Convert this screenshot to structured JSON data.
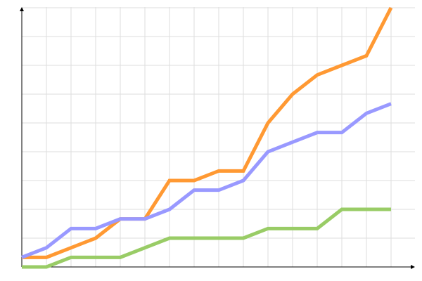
{
  "chart_data": {
    "type": "line",
    "title": "",
    "xlabel": "",
    "ylabel": "",
    "x": [
      0,
      1,
      2,
      3,
      4,
      5,
      6,
      7,
      8,
      9,
      10,
      11,
      12,
      13,
      14,
      15
    ],
    "xlim": [
      0,
      15
    ],
    "ylim": [
      0,
      27
    ],
    "grid": true,
    "y_grid_step": 3,
    "series": [
      {
        "color": "#ff9933",
        "values": [
          1,
          1,
          2,
          3,
          5,
          5,
          9,
          9,
          10,
          10,
          15,
          18,
          20,
          21,
          22,
          27
        ]
      },
      {
        "color": "#9999ff",
        "values": [
          1,
          2,
          4,
          4,
          5,
          5,
          6,
          8,
          8,
          9,
          12,
          13,
          14,
          14,
          16,
          17
        ]
      },
      {
        "color": "#99cc66",
        "values": [
          0,
          0,
          1,
          1,
          1,
          2,
          3,
          3,
          3,
          3,
          4,
          4,
          4,
          6,
          6,
          6
        ]
      }
    ],
    "colors": {
      "grid": "#dddddd",
      "axis": "#000000"
    }
  }
}
